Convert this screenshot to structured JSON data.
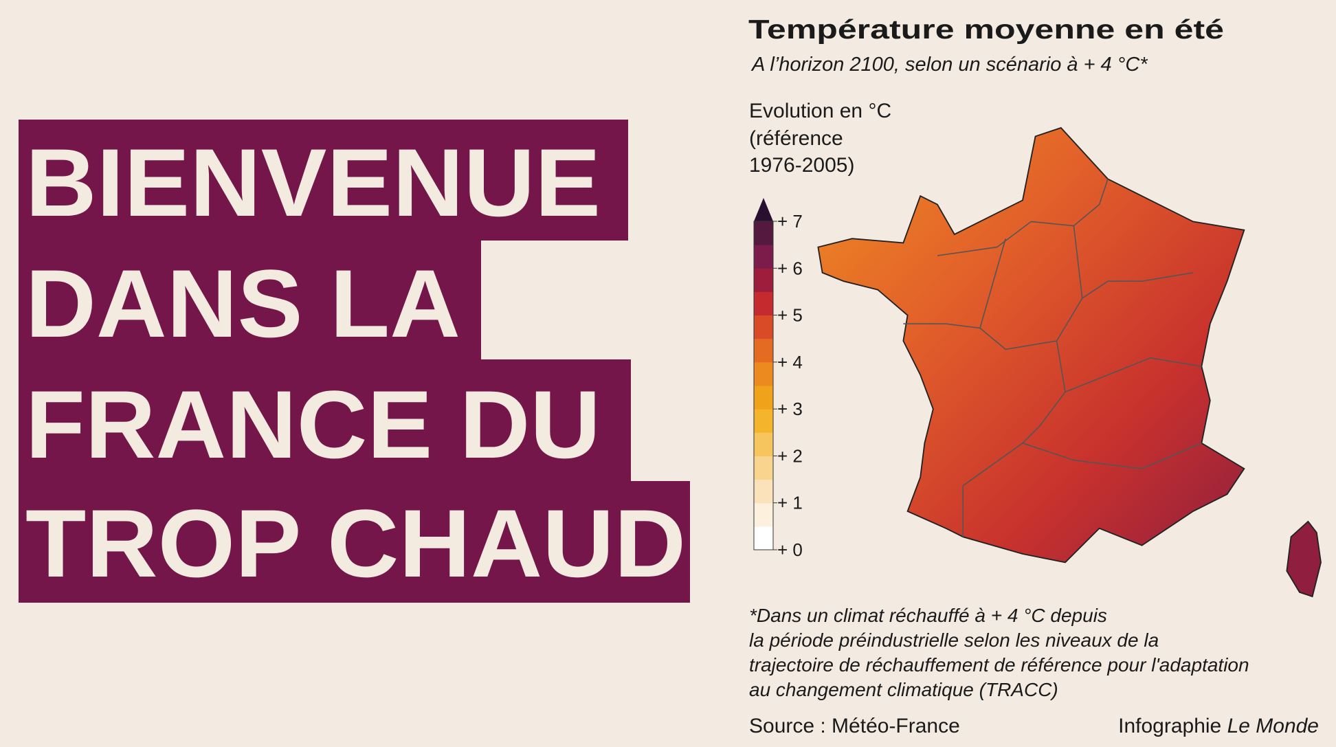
{
  "headline": [
    "BIENVENUE",
    "DANS LA",
    "FRANCE DU",
    "TROP CHAUD"
  ],
  "map": {
    "title": "Température moyenne en été",
    "subtitle": "A l’horizon 2100, selon un scénario à + 4 °C*",
    "legend": {
      "title": [
        "Evolution en °C",
        "(référence",
        "1976-2005)"
      ],
      "range": [
        0,
        7
      ],
      "ticks": [
        {
          "value": 0,
          "label": "+ 0"
        },
        {
          "value": 1,
          "label": "+ 1"
        },
        {
          "value": 2,
          "label": "+ 2"
        },
        {
          "value": 3,
          "label": "+ 3"
        },
        {
          "value": 4,
          "label": "+ 4"
        },
        {
          "value": 5,
          "label": "+ 5"
        },
        {
          "value": 6,
          "label": "+ 6"
        },
        {
          "value": 7,
          "label": "+ 7"
        }
      ],
      "colors": [
        "#ffffff",
        "#fdf0dc",
        "#fbe2bb",
        "#f9d48f",
        "#f7c55e",
        "#f4b52d",
        "#f0a21a",
        "#ec8a1f",
        "#e46c22",
        "#d94a26",
        "#c42a2e",
        "#9f1d3c",
        "#7b1c4a",
        "#55193f"
      ]
    },
    "footnote": [
      "*Dans un climat réchauffé à + 4 °C depuis",
      "la période préindustrielle selon les niveaux de la",
      "trajectoire de réchauffement de référence pour l'adaptation",
      "au changement climatique (TRACC)"
    ],
    "source": "Source : Météo-France",
    "credit": {
      "text": "Infographie ",
      "publication": "Le Monde"
    }
  }
}
